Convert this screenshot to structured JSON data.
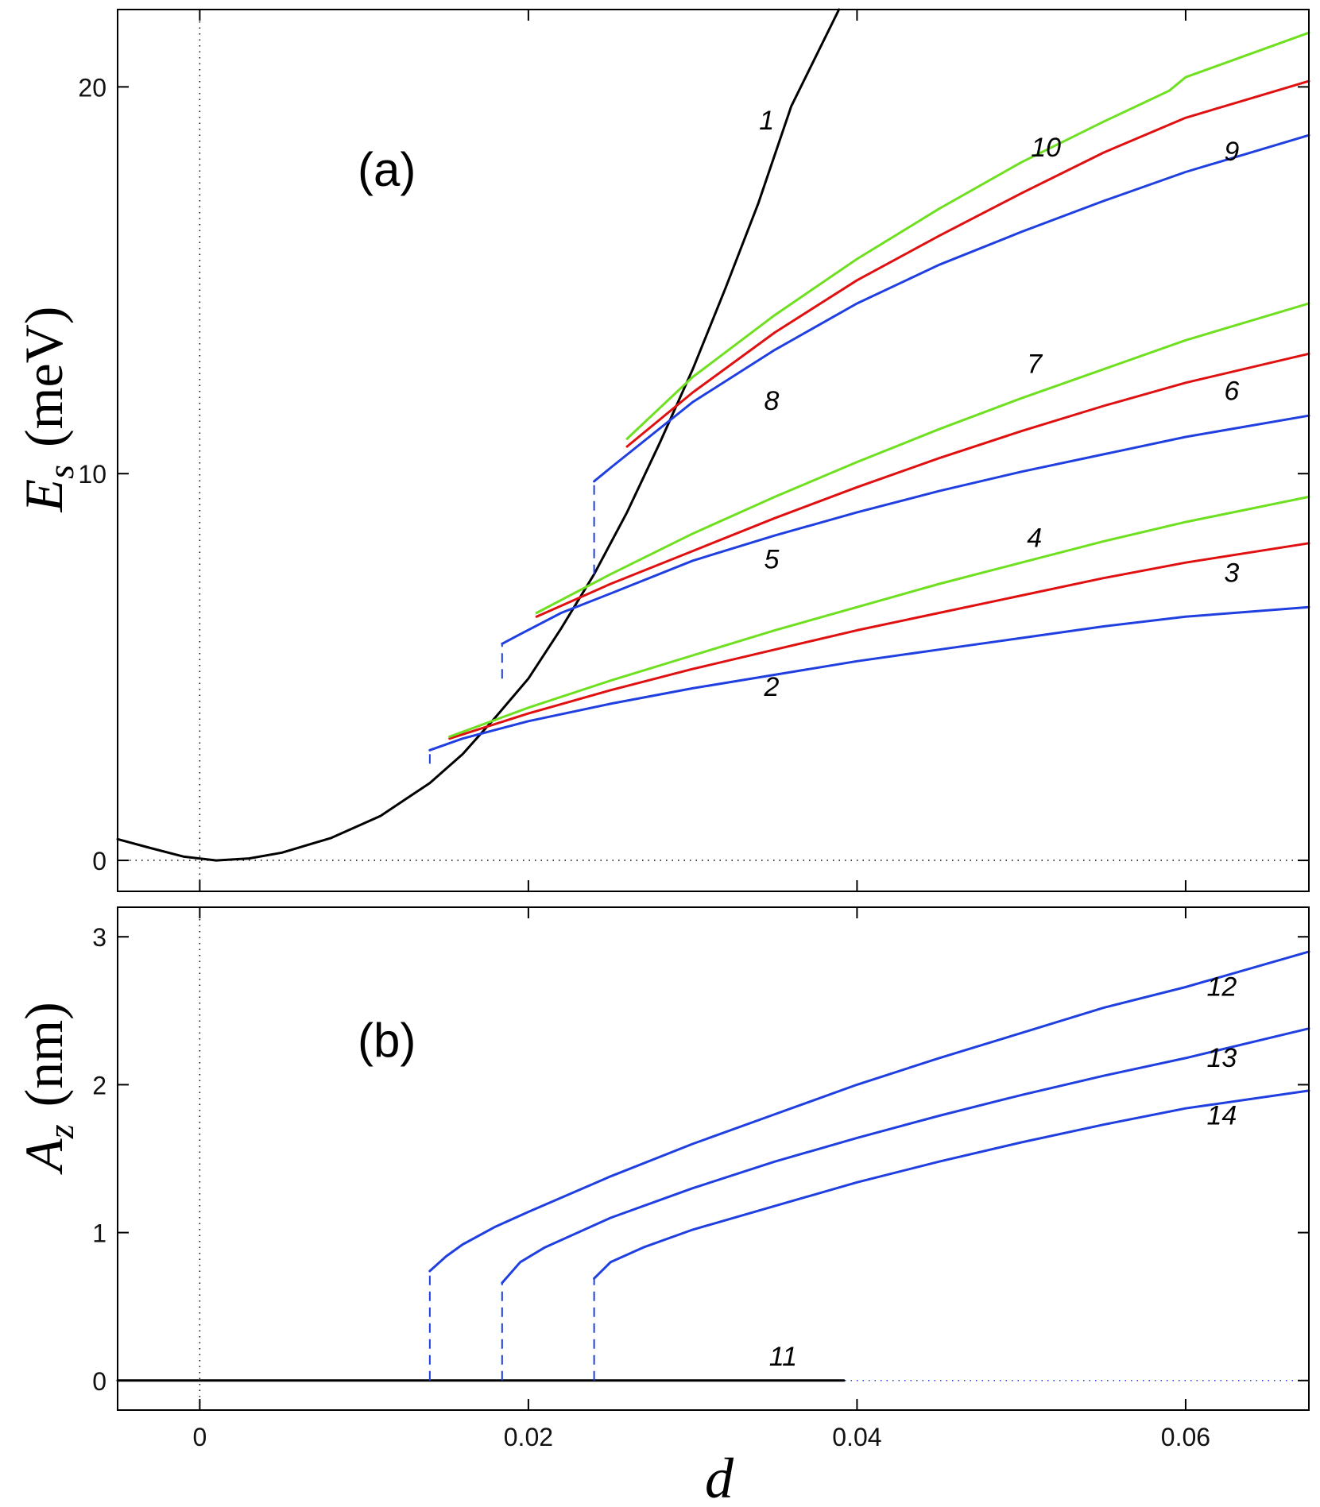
{
  "chart_data": [
    {
      "type": "line",
      "panel_label": "(a)",
      "ylabel": {
        "main": "E",
        "sub": "s",
        "unit": "(meV)"
      },
      "xlabel": "",
      "xlim": [
        -0.005,
        0.0675
      ],
      "ylim": [
        -0.8,
        22
      ],
      "xticks": [
        0,
        0.02,
        0.04,
        0.06
      ],
      "xtick_labels": [],
      "yticks": [
        0,
        10,
        20
      ],
      "ytick_labels": [
        "0",
        "10",
        "20"
      ],
      "reference_lines": [
        {
          "axis": "x",
          "value": 0,
          "style": "dotted",
          "color": "#000000"
        },
        {
          "axis": "y",
          "value": 0,
          "style": "dotted",
          "color": "#000000"
        }
      ],
      "series": [
        {
          "name": "1",
          "color": "#000000",
          "x": [
            -0.005,
            -0.003,
            -0.001,
            0.001,
            0.003,
            0.005,
            0.008,
            0.011,
            0.014,
            0.016,
            0.018,
            0.02,
            0.022,
            0.024,
            0.026,
            0.028,
            0.03,
            0.032,
            0.034,
            0.036,
            0.0389
          ],
          "y": [
            0.55,
            0.32,
            0.1,
            0.0,
            0.05,
            0.2,
            0.58,
            1.15,
            2.0,
            2.75,
            3.7,
            4.7,
            6.0,
            7.4,
            9.0,
            10.8,
            12.7,
            14.8,
            17.0,
            19.5,
            22.0
          ]
        },
        {
          "name": "2",
          "color": "#1f3fe0",
          "x": [
            0.014,
            0.016,
            0.02,
            0.025,
            0.03,
            0.035,
            0.04,
            0.045,
            0.05,
            0.055,
            0.06,
            0.0675
          ],
          "y": [
            2.85,
            3.15,
            3.6,
            4.05,
            4.45,
            4.8,
            5.15,
            5.45,
            5.75,
            6.05,
            6.3,
            6.55
          ]
        },
        {
          "name": "3",
          "color": "#e01010",
          "x": [
            0.0152,
            0.02,
            0.025,
            0.03,
            0.035,
            0.04,
            0.045,
            0.05,
            0.055,
            0.06,
            0.0675
          ],
          "y": [
            3.15,
            3.8,
            4.4,
            4.95,
            5.45,
            5.95,
            6.4,
            6.85,
            7.3,
            7.7,
            8.2
          ]
        },
        {
          "name": "4",
          "color": "#6ee020",
          "x": [
            0.0152,
            0.02,
            0.025,
            0.03,
            0.035,
            0.04,
            0.045,
            0.05,
            0.055,
            0.06,
            0.0675
          ],
          "y": [
            3.2,
            3.95,
            4.65,
            5.3,
            5.95,
            6.55,
            7.15,
            7.7,
            8.25,
            8.75,
            9.4
          ]
        },
        {
          "name": "5",
          "color": "#1f3fe0",
          "x": [
            0.0184,
            0.0195,
            0.022,
            0.025,
            0.03,
            0.035,
            0.04,
            0.045,
            0.05,
            0.055,
            0.06,
            0.0675
          ],
          "y": [
            5.6,
            5.85,
            6.4,
            6.9,
            7.75,
            8.4,
            9.0,
            9.55,
            10.05,
            10.5,
            10.95,
            11.5
          ]
        },
        {
          "name": "6",
          "color": "#e01010",
          "x": [
            0.0205,
            0.025,
            0.03,
            0.035,
            0.04,
            0.045,
            0.05,
            0.055,
            0.06,
            0.0675
          ],
          "y": [
            6.3,
            7.15,
            8.0,
            8.85,
            9.65,
            10.4,
            11.1,
            11.75,
            12.35,
            13.1
          ]
        },
        {
          "name": "7",
          "color": "#6ee020",
          "x": [
            0.0205,
            0.025,
            0.03,
            0.035,
            0.04,
            0.045,
            0.05,
            0.055,
            0.06,
            0.0675
          ],
          "y": [
            6.4,
            7.4,
            8.45,
            9.4,
            10.3,
            11.15,
            11.95,
            12.7,
            13.45,
            14.4
          ]
        },
        {
          "name": "8",
          "color": "#1f3fe0",
          "x": [
            0.024,
            0.025,
            0.03,
            0.035,
            0.04,
            0.045,
            0.05,
            0.055,
            0.06,
            0.0675
          ],
          "y": [
            9.8,
            10.15,
            11.85,
            13.2,
            14.4,
            15.4,
            16.25,
            17.05,
            17.8,
            18.75
          ]
        },
        {
          "name": "9",
          "color": "#e01010",
          "x": [
            0.026,
            0.03,
            0.035,
            0.04,
            0.045,
            0.05,
            0.055,
            0.06,
            0.0675
          ],
          "y": [
            10.7,
            12.1,
            13.65,
            15.0,
            16.15,
            17.25,
            18.3,
            19.2,
            20.15
          ]
        },
        {
          "name": "10",
          "color": "#6ee020",
          "x": [
            0.026,
            0.03,
            0.035,
            0.04,
            0.045,
            0.05,
            0.055,
            0.059,
            0.06,
            0.0675
          ],
          "y": [
            10.9,
            12.5,
            14.1,
            15.55,
            16.85,
            18.05,
            19.1,
            19.9,
            20.25,
            21.4
          ]
        }
      ],
      "jumps": [
        {
          "x": 0.014,
          "y0": 2.5,
          "y1": 2.85,
          "color": "#1f3fe0"
        },
        {
          "x": 0.0184,
          "y0": 4.7,
          "y1": 5.6,
          "color": "#1f3fe0"
        },
        {
          "x": 0.024,
          "y0": 7.4,
          "y1": 9.8,
          "color": "#1f3fe0"
        }
      ],
      "curve_labels": [
        {
          "text": "1",
          "x": 0.0345,
          "y": 18.9
        },
        {
          "text": "2",
          "x": 0.0348,
          "y": 4.25
        },
        {
          "text": "3",
          "x": 0.0628,
          "y": 7.2
        },
        {
          "text": "4",
          "x": 0.0508,
          "y": 8.1
        },
        {
          "text": "5",
          "x": 0.0348,
          "y": 7.55
        },
        {
          "text": "6",
          "x": 0.0628,
          "y": 11.9
        },
        {
          "text": "7",
          "x": 0.0508,
          "y": 12.6
        },
        {
          "text": "8",
          "x": 0.0348,
          "y": 11.65
        },
        {
          "text": "9",
          "x": 0.0628,
          "y": 18.1
        },
        {
          "text": "10",
          "x": 0.0515,
          "y": 18.2
        }
      ]
    },
    {
      "type": "line",
      "panel_label": "(b)",
      "ylabel": {
        "main": "A",
        "sub": "z",
        "unit": "(nm)"
      },
      "xlabel": "d",
      "xlim": [
        -0.005,
        0.0675
      ],
      "ylim": [
        -0.2,
        3.2
      ],
      "xticks": [
        0,
        0.02,
        0.04,
        0.06
      ],
      "xtick_labels": [
        "0",
        "0.02",
        "0.04",
        "0.06"
      ],
      "yticks": [
        0,
        1,
        2,
        3
      ],
      "ytick_labels": [
        "0",
        "1",
        "2",
        "3"
      ],
      "reference_lines": [
        {
          "axis": "x",
          "value": 0,
          "style": "dotted",
          "color": "#000000"
        },
        {
          "axis": "y",
          "value": 0,
          "style": "dotted",
          "color": "#1f3fe0"
        }
      ],
      "series": [
        {
          "name": "11",
          "color": "#000000",
          "x": [
            -0.005,
            0.0392
          ],
          "y": [
            0,
            0
          ]
        },
        {
          "name": "12",
          "color": "#1f3fe0",
          "x": [
            0.014,
            0.015,
            0.016,
            0.018,
            0.02,
            0.025,
            0.03,
            0.035,
            0.04,
            0.045,
            0.05,
            0.055,
            0.06,
            0.0675
          ],
          "y": [
            0.74,
            0.84,
            0.92,
            1.04,
            1.14,
            1.38,
            1.6,
            1.8,
            2.0,
            2.18,
            2.35,
            2.52,
            2.66,
            2.9
          ]
        },
        {
          "name": "13",
          "color": "#1f3fe0",
          "x": [
            0.0184,
            0.0195,
            0.021,
            0.025,
            0.03,
            0.035,
            0.04,
            0.045,
            0.05,
            0.055,
            0.06,
            0.0675
          ],
          "y": [
            0.66,
            0.8,
            0.9,
            1.1,
            1.3,
            1.48,
            1.64,
            1.79,
            1.93,
            2.06,
            2.18,
            2.38
          ]
        },
        {
          "name": "14",
          "color": "#1f3fe0",
          "x": [
            0.024,
            0.025,
            0.027,
            0.03,
            0.035,
            0.04,
            0.045,
            0.05,
            0.055,
            0.06,
            0.0675
          ],
          "y": [
            0.69,
            0.8,
            0.9,
            1.02,
            1.18,
            1.34,
            1.48,
            1.61,
            1.73,
            1.84,
            1.96
          ]
        }
      ],
      "jumps": [
        {
          "x": 0.014,
          "y0": 0.0,
          "y1": 0.74,
          "color": "#1f3fe0"
        },
        {
          "x": 0.0184,
          "y0": 0.0,
          "y1": 0.66,
          "color": "#1f3fe0"
        },
        {
          "x": 0.024,
          "y0": 0.0,
          "y1": 0.69,
          "color": "#1f3fe0"
        }
      ],
      "curve_labels": [
        {
          "text": "11",
          "x": 0.0355,
          "y": 0.1
        },
        {
          "text": "12",
          "x": 0.0622,
          "y": 2.6
        },
        {
          "text": "13",
          "x": 0.0622,
          "y": 2.12
        },
        {
          "text": "14",
          "x": 0.0622,
          "y": 1.73
        }
      ]
    }
  ]
}
